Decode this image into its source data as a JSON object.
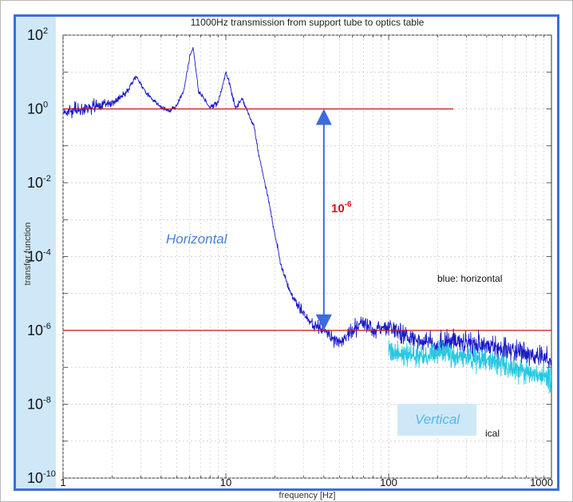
{
  "chart_data": {
    "type": "line",
    "title": "11000Hz transmission from support tube to optics table",
    "xlabel": "frequency [Hz]",
    "ylabel": "transfer function",
    "xscale": "log",
    "yscale": "log",
    "xlim": [
      1,
      1000
    ],
    "ylim": [
      1e-10,
      100
    ],
    "x_ticks": [
      {
        "value": 1,
        "label": "1"
      },
      {
        "value": 10,
        "label": "10"
      },
      {
        "value": 100,
        "label": "100"
      },
      {
        "value": 1000,
        "label": "1000"
      }
    ],
    "y_ticks": [
      {
        "value": 100,
        "base": "10",
        "exp": "2"
      },
      {
        "value": 1,
        "base": "10",
        "exp": "0"
      },
      {
        "value": 0.01,
        "base": "10",
        "exp": "-2"
      },
      {
        "value": 0.0001,
        "base": "10",
        "exp": "-4"
      },
      {
        "value": 1e-06,
        "base": "10",
        "exp": "-6"
      },
      {
        "value": 1e-08,
        "base": "10",
        "exp": "-8"
      },
      {
        "value": 1e-10,
        "base": "10",
        "exp": "-10"
      }
    ],
    "grid": true,
    "series": [
      {
        "key": "horizontal",
        "color": "#1a1ac8",
        "x_range": [
          1,
          1000
        ],
        "x": [
          1,
          1.5,
          2,
          2.5,
          2.8,
          3.2,
          4,
          4.5,
          5,
          5.5,
          6,
          6.3,
          6.8,
          8,
          9,
          10,
          10.5,
          11.5,
          12.5,
          14,
          15,
          16,
          18,
          20,
          22,
          25,
          28,
          32,
          35,
          40,
          45,
          50,
          60,
          70,
          80,
          100,
          120,
          150,
          200,
          250,
          300,
          400,
          500,
          600,
          700,
          800,
          1000
        ],
        "y": [
          0.8,
          1.1,
          1.4,
          3,
          8,
          3,
          1.1,
          0.9,
          1.2,
          3,
          25,
          45,
          3,
          1.1,
          1.5,
          10,
          5,
          1,
          2,
          0.6,
          0.3,
          0.05,
          0.005,
          0.0004,
          5e-05,
          1e-05,
          5e-06,
          2e-06,
          1.5e-06,
          1e-06,
          6e-07,
          4e-07,
          1e-06,
          1.5e-06,
          1e-06,
          1.2e-06,
          8e-07,
          5e-07,
          4e-07,
          6e-07,
          4.5e-07,
          4e-07,
          3e-07,
          3e-07,
          2.5e-07,
          2e-07,
          1.5e-07
        ],
        "noise_dex": [
          0.28,
          0.25,
          0.2,
          0.12,
          0.1,
          0.1,
          0.08,
          0.1,
          0.1,
          0.1,
          0.08,
          0.06,
          0.1,
          0.1,
          0.1,
          0.07,
          0.1,
          0.1,
          0.08,
          0.08,
          0.1,
          0.12,
          0.12,
          0.12,
          0.14,
          0.16,
          0.2,
          0.25,
          0.28,
          0.28,
          0.28,
          0.28,
          0.32,
          0.32,
          0.34,
          0.36,
          0.38,
          0.4,
          0.42,
          0.44,
          0.45,
          0.46,
          0.46,
          0.46,
          0.46,
          0.46,
          0.46
        ]
      },
      {
        "key": "vertical",
        "color": "#28c8e0",
        "x_range": [
          100,
          1000
        ],
        "x": [
          100,
          130,
          170,
          220,
          280,
          350,
          450,
          550,
          650,
          800,
          1000
        ],
        "y": [
          3e-07,
          2e-07,
          2e-07,
          2.5e-07,
          2e-07,
          1.8e-07,
          1.5e-07,
          1e-07,
          8e-08,
          6e-08,
          5e-08
        ],
        "noise_dex": [
          0.4,
          0.42,
          0.45,
          0.45,
          0.47,
          0.47,
          0.48,
          0.48,
          0.48,
          0.48,
          0.48
        ]
      }
    ],
    "reference_lines": [
      {
        "y": 1,
        "x_end": 250,
        "color": "#c81414"
      },
      {
        "y": 1e-06,
        "x_end": 1000,
        "color": "#c81414"
      }
    ],
    "arrow": {
      "x": 40,
      "y_top": 1,
      "y_bottom": 1e-06,
      "color": "#3c6cdc"
    },
    "legend": {
      "entries": [
        "blue: horizontal",
        "ical"
      ],
      "placement": "right"
    },
    "annotations": {
      "horizontal": "Horizontal",
      "vertical": "Vertical",
      "ratio_base": "10",
      "ratio_exp": "-6"
    }
  }
}
